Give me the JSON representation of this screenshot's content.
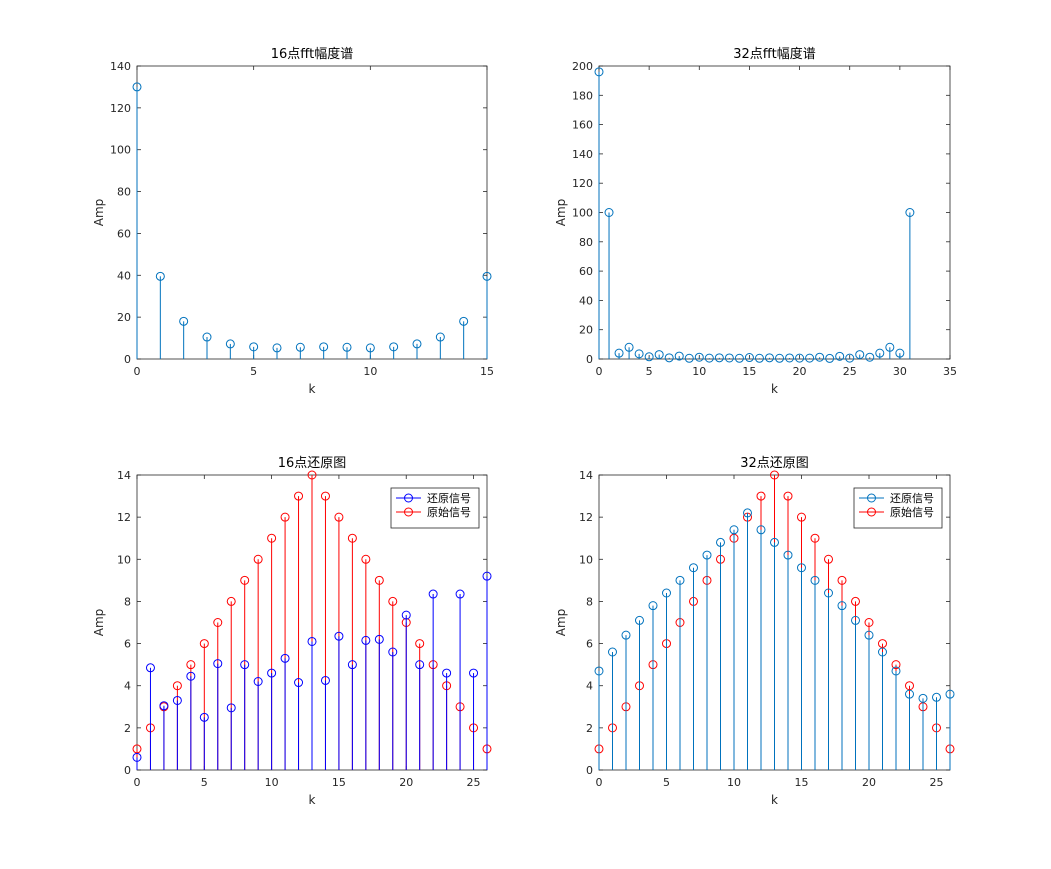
{
  "figure": {
    "background": "#ffffff"
  },
  "chart_data": [
    {
      "type": "stem",
      "title": "16点fft幅度谱",
      "xlabel": "k",
      "ylabel": "Amp",
      "xlim": [
        0,
        15
      ],
      "ylim": [
        0,
        140
      ],
      "xticks": [
        0,
        5,
        10,
        15
      ],
      "yticks": [
        0,
        20,
        40,
        60,
        80,
        100,
        120,
        140
      ],
      "grid": false,
      "legend": null,
      "series": [
        {
          "color": "#0072bd",
          "x": [
            0,
            1,
            2,
            3,
            4,
            5,
            6,
            7,
            8,
            9,
            10,
            11,
            12,
            13,
            14,
            15
          ],
          "values": [
            130,
            39.5,
            18,
            10.5,
            7.2,
            5.8,
            5.3,
            5.6,
            5.8,
            5.6,
            5.3,
            5.8,
            7.2,
            10.5,
            18,
            39.5
          ]
        }
      ]
    },
    {
      "type": "stem",
      "title": "32点fft幅度谱",
      "xlabel": "k",
      "ylabel": "Amp",
      "xlim": [
        0,
        35
      ],
      "ylim": [
        0,
        200
      ],
      "xticks": [
        0,
        5,
        10,
        15,
        20,
        25,
        30,
        35
      ],
      "yticks": [
        0,
        20,
        40,
        60,
        80,
        100,
        120,
        140,
        160,
        180,
        200
      ],
      "grid": false,
      "legend": null,
      "series": [
        {
          "color": "#0072bd",
          "x": [
            0,
            1,
            2,
            3,
            4,
            5,
            6,
            7,
            8,
            9,
            10,
            11,
            12,
            13,
            14,
            15,
            16,
            17,
            18,
            19,
            20,
            21,
            22,
            23,
            24,
            25,
            26,
            27,
            28,
            29,
            30,
            31
          ],
          "values": [
            196,
            100,
            4,
            8,
            3.5,
            1.5,
            3,
            0.8,
            2,
            0.5,
            1.2,
            0.6,
            0.8,
            0.7,
            0.5,
            1,
            0.5,
            0.8,
            0.5,
            0.7,
            0.6,
            0.6,
            1.2,
            0.4,
            1.8,
            0.6,
            3,
            1.2,
            4,
            8,
            4,
            100
          ]
        }
      ]
    },
    {
      "type": "stem",
      "title": "16点还原图",
      "xlabel": "k",
      "ylabel": "Amp",
      "xlim": [
        0,
        26
      ],
      "ylim": [
        0,
        14
      ],
      "xticks": [
        0,
        5,
        10,
        15,
        20,
        25
      ],
      "yticks": [
        0,
        2,
        4,
        6,
        8,
        10,
        12,
        14
      ],
      "grid": false,
      "legend": "top-right",
      "series": [
        {
          "name": "还原信号",
          "color": "#0000ff",
          "x": [
            0,
            1,
            2,
            3,
            4,
            5,
            6,
            7,
            8,
            9,
            10,
            11,
            12,
            13,
            14,
            15,
            16,
            17,
            18,
            19,
            20,
            21,
            22,
            23,
            24,
            25,
            26
          ],
          "values": [
            0.6,
            4.85,
            3.05,
            3.3,
            4.45,
            2.5,
            5.05,
            2.95,
            5.0,
            4.2,
            4.6,
            5.3,
            4.15,
            6.1,
            4.25,
            6.35,
            5.0,
            6.15,
            6.2,
            5.6,
            7.35,
            5.0,
            8.35,
            4.6,
            8.35,
            4.6,
            9.2
          ]
        },
        {
          "name": "原始信号",
          "color": "#ff0000",
          "x": [
            0,
            1,
            2,
            3,
            4,
            5,
            6,
            7,
            8,
            9,
            10,
            11,
            12,
            13,
            14,
            15,
            16,
            17,
            18,
            19,
            20,
            21,
            22,
            23,
            24,
            25,
            26
          ],
          "values": [
            1,
            2,
            3,
            4,
            5,
            6,
            7,
            8,
            9,
            10,
            11,
            12,
            13,
            14,
            13,
            12,
            11,
            10,
            9,
            8,
            7,
            6,
            5,
            4,
            3,
            2,
            1
          ]
        }
      ]
    },
    {
      "type": "stem",
      "title": "32点还原图",
      "xlabel": "k",
      "ylabel": "Amp",
      "xlim": [
        0,
        26
      ],
      "ylim": [
        0,
        14
      ],
      "xticks": [
        0,
        5,
        10,
        15,
        20,
        25
      ],
      "yticks": [
        0,
        2,
        4,
        6,
        8,
        10,
        12,
        14
      ],
      "grid": false,
      "legend": "top-right",
      "series": [
        {
          "name": "还原信号",
          "color": "#0072bd",
          "x": [
            0,
            1,
            2,
            3,
            4,
            5,
            6,
            7,
            8,
            9,
            10,
            11,
            12,
            13,
            14,
            15,
            16,
            17,
            18,
            19,
            20,
            21,
            22,
            23,
            24,
            25,
            26
          ],
          "values": [
            4.7,
            5.6,
            6.4,
            7.1,
            7.8,
            8.4,
            9.0,
            9.6,
            10.2,
            10.8,
            11.4,
            12.2,
            11.4,
            10.8,
            10.2,
            9.6,
            9.0,
            8.4,
            7.8,
            7.1,
            6.4,
            5.6,
            4.7,
            3.6,
            3.4,
            3.45,
            3.6
          ]
        },
        {
          "name": "原始信号",
          "color": "#ff0000",
          "x": [
            0,
            1,
            2,
            3,
            4,
            5,
            6,
            7,
            8,
            9,
            10,
            11,
            12,
            13,
            14,
            15,
            16,
            17,
            18,
            19,
            20,
            21,
            22,
            23,
            24,
            25,
            26
          ],
          "values": [
            1,
            2,
            3,
            4,
            5,
            6,
            7,
            8,
            9,
            10,
            11,
            12,
            13,
            14,
            13,
            12,
            11,
            10,
            9,
            8,
            7,
            6,
            5,
            4,
            3,
            2,
            1
          ]
        }
      ]
    }
  ]
}
